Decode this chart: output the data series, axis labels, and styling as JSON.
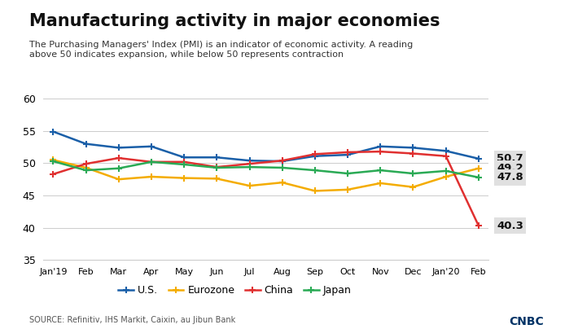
{
  "title": "Manufacturing activity in major economies",
  "subtitle": "The Purchasing Managers' Index (PMI) is an indicator of economic activity. A reading\nabove 50 indicates expansion, while below 50 represents contraction",
  "source": "SOURCE: Refinitiv, IHS Markit, Caixin, au Jibun Bank",
  "x_labels": [
    "Jan'19",
    "Feb",
    "Mar",
    "Apr",
    "May",
    "Jun",
    "Jul",
    "Aug",
    "Sep",
    "Oct",
    "Nov",
    "Dec",
    "Jan'20",
    "Feb"
  ],
  "ylim": [
    35,
    60
  ],
  "yticks": [
    40,
    45,
    50,
    55,
    60
  ],
  "series_order": [
    "U.S.",
    "Eurozone",
    "China",
    "Japan"
  ],
  "series": {
    "U.S.": {
      "color": "#1a5fa8",
      "values": [
        54.9,
        53.0,
        52.4,
        52.6,
        50.9,
        50.9,
        50.4,
        50.3,
        51.1,
        51.3,
        52.6,
        52.4,
        51.9,
        50.7
      ]
    },
    "Eurozone": {
      "color": "#f4ac00",
      "values": [
        50.5,
        49.3,
        47.5,
        47.9,
        47.7,
        47.6,
        46.5,
        47.0,
        45.7,
        45.9,
        46.9,
        46.3,
        47.9,
        49.2
      ]
    },
    "China": {
      "color": "#e03030",
      "values": [
        48.3,
        49.9,
        50.8,
        50.2,
        50.2,
        49.4,
        49.9,
        50.4,
        51.4,
        51.7,
        51.8,
        51.5,
        51.1,
        40.3
      ]
    },
    "Japan": {
      "color": "#2aaa55",
      "values": [
        50.3,
        48.9,
        49.2,
        50.2,
        49.8,
        49.3,
        49.4,
        49.3,
        48.9,
        48.4,
        48.9,
        48.4,
        48.8,
        47.8
      ]
    }
  },
  "end_labels": [
    {
      "label": "50.7",
      "yval": 50.7
    },
    {
      "label": "49.2",
      "yval": 49.2
    },
    {
      "label": "47.8",
      "yval": 47.8
    },
    {
      "label": "40.3",
      "yval": 40.3
    }
  ],
  "background_color": "#ffffff",
  "top_bar_color": "#1a2f5a",
  "label_box_color": "#e0e0e0",
  "grid_color": "#cccccc"
}
